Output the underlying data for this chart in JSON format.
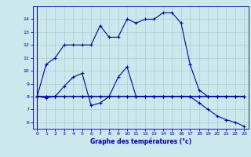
{
  "title": "Graphe des températures (°c)",
  "bg_color": "#cce8ec",
  "line_color": "#0000bb",
  "grid_color": "#aaccd4",
  "xlim": [
    -0.5,
    23.5
  ],
  "ylim": [
    5.5,
    15.0
  ],
  "yticks": [
    6,
    7,
    8,
    9,
    10,
    11,
    12,
    13,
    14
  ],
  "xticks": [
    0,
    1,
    2,
    3,
    4,
    5,
    6,
    7,
    8,
    9,
    10,
    11,
    12,
    13,
    14,
    15,
    16,
    17,
    18,
    19,
    20,
    21,
    22,
    23
  ],
  "curve1_x": [
    0,
    1,
    2,
    3,
    4,
    5,
    6,
    7,
    8,
    9,
    10,
    11,
    12,
    13,
    14,
    15,
    16,
    17,
    18,
    19,
    20,
    21,
    22,
    23
  ],
  "curve1_y": [
    8.0,
    10.5,
    11.0,
    12.0,
    12.0,
    12.0,
    12.0,
    13.5,
    12.6,
    12.6,
    14.0,
    13.7,
    14.0,
    14.0,
    14.5,
    14.5,
    13.7,
    10.5,
    8.5,
    8.0,
    8.0,
    8.0,
    8.0,
    8.0
  ],
  "curve2_x": [
    0,
    1,
    2,
    3,
    4,
    5,
    6,
    7,
    8,
    9,
    10,
    11,
    12,
    13,
    14,
    15,
    16,
    17,
    18,
    19,
    20,
    21,
    22,
    23
  ],
  "curve2_y": [
    8.0,
    8.0,
    8.0,
    8.8,
    9.5,
    9.8,
    7.3,
    7.5,
    8.0,
    9.5,
    10.3,
    8.0,
    8.0,
    8.0,
    8.0,
    8.0,
    8.0,
    8.0,
    8.0,
    8.0,
    8.0,
    8.0,
    8.0,
    8.0
  ],
  "curve3_x": [
    0,
    1,
    2,
    3,
    4,
    5,
    6,
    7,
    8,
    9,
    10,
    11,
    12,
    13,
    14,
    15,
    16,
    17,
    18,
    19,
    20,
    21,
    22,
    23
  ],
  "curve3_y": [
    8.0,
    7.9,
    8.0,
    8.0,
    8.0,
    8.0,
    8.0,
    8.0,
    8.0,
    8.0,
    8.0,
    8.0,
    8.0,
    8.0,
    8.0,
    8.0,
    8.0,
    8.0,
    8.0,
    8.0,
    8.0,
    8.0,
    8.0,
    8.0
  ],
  "curve4_x": [
    0,
    1,
    2,
    3,
    4,
    5,
    6,
    7,
    8,
    9,
    10,
    11,
    12,
    13,
    14,
    15,
    16,
    17,
    18,
    19,
    20,
    21,
    22,
    23
  ],
  "curve4_y": [
    8.0,
    8.0,
    8.0,
    8.0,
    8.0,
    8.0,
    8.0,
    8.0,
    8.0,
    8.0,
    8.0,
    8.0,
    8.0,
    8.0,
    8.0,
    8.0,
    8.0,
    8.0,
    7.5,
    7.0,
    6.5,
    6.2,
    6.0,
    5.7
  ]
}
